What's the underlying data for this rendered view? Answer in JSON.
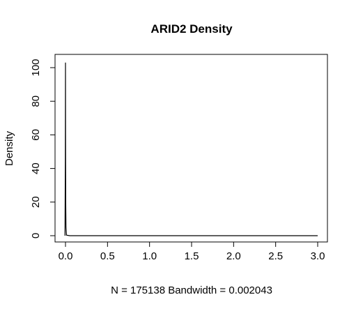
{
  "chart_data": {
    "type": "line",
    "title": "ARID2 Density",
    "xlabel": "N = 175138   Bandwidth = 0.002043",
    "ylabel": "Density",
    "xlim": [
      0,
      3.0
    ],
    "ylim": [
      0,
      105
    ],
    "x_ticks": [
      "0.0",
      "0.5",
      "1.0",
      "1.5",
      "2.0",
      "2.5",
      "3.0"
    ],
    "y_ticks": [
      "0",
      "20",
      "40",
      "60",
      "80",
      "100"
    ],
    "grid": false,
    "legend": "none",
    "line_color": "#000000",
    "series": [
      {
        "x": [
          -0.006,
          -0.002,
          0.0,
          0.001,
          0.003,
          0.006,
          0.012,
          0.05,
          0.5,
          1.0,
          1.5,
          2.0,
          2.5,
          3.0
        ],
        "y": [
          0,
          45,
          103,
          60,
          20,
          5,
          0.3,
          0,
          0,
          0,
          0,
          0,
          0,
          0
        ]
      }
    ]
  }
}
